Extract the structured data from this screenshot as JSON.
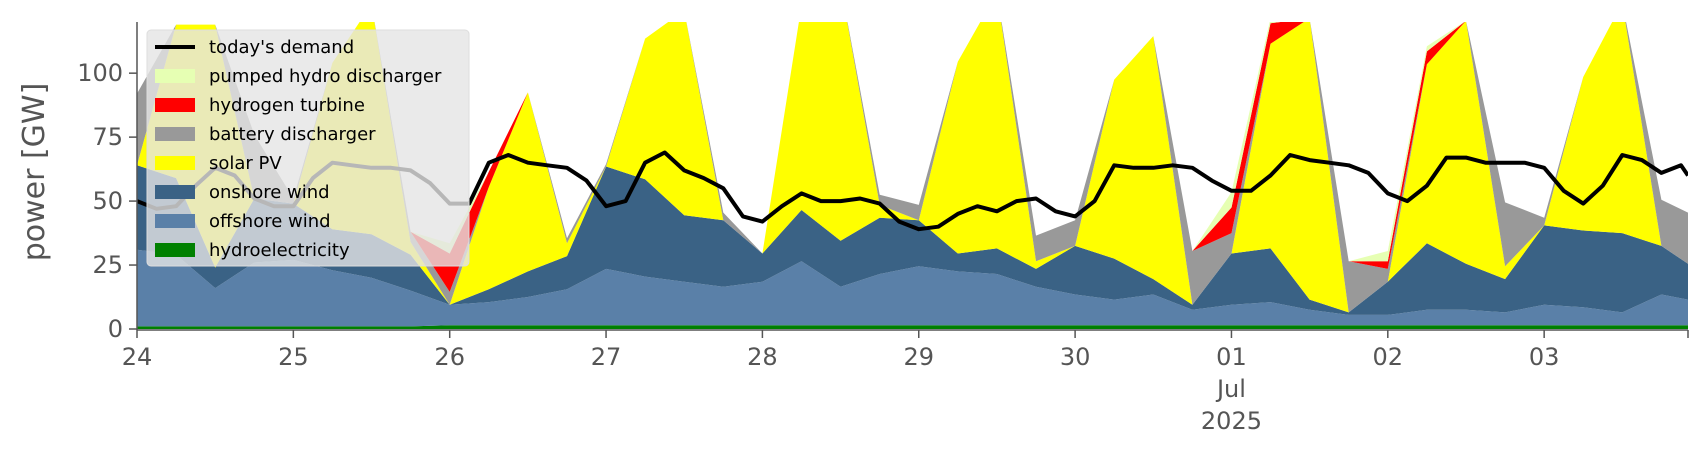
{
  "chart_data": {
    "type": "area",
    "ylabel": "power [GW]",
    "ylim": [
      0,
      120
    ],
    "xlim": [
      0,
      9.92
    ],
    "y_ticks": [
      0,
      25,
      50,
      75,
      100
    ],
    "x_ticks": [
      {
        "x": 0,
        "label": "24"
      },
      {
        "x": 1,
        "label": "25"
      },
      {
        "x": 2,
        "label": "26"
      },
      {
        "x": 3,
        "label": "27"
      },
      {
        "x": 4,
        "label": "28"
      },
      {
        "x": 5,
        "label": "29"
      },
      {
        "x": 6,
        "label": "30"
      },
      {
        "x": 7,
        "label": "01"
      },
      {
        "x": 8,
        "label": "02"
      },
      {
        "x": 9,
        "label": "03"
      }
    ],
    "x_sublabels": [
      "Jul",
      "2025"
    ],
    "x_sublabel_at": 7,
    "legend_placement": "upper-left",
    "grid": false,
    "stack_order": [
      "hydroelectricity",
      "offshore wind",
      "onshore wind",
      "solar PV",
      "battery discharger",
      "hydrogen turbine",
      "pumped hydro discharger"
    ],
    "legend_entries": [
      "today's demand",
      "pumped hydro discharger",
      "hydrogen turbine",
      "battery discharger",
      "solar PV",
      "onshore wind",
      "offshore wind",
      "hydroelectricity"
    ],
    "colors": {
      "hydroelectricity": "#008000",
      "offshore wind": "#5a80a8",
      "onshore wind": "#3a6285",
      "solar PV": "#ffff00",
      "battery discharger": "#999999",
      "hydrogen turbine": "#ff0000",
      "pumped hydro discharger": "#e6ffb3",
      "today's demand": "#000000"
    },
    "x": [
      0,
      0.25,
      0.5,
      0.75,
      1,
      1.25,
      1.5,
      1.75,
      2,
      2.25,
      2.5,
      2.75,
      3,
      3.25,
      3.5,
      3.75,
      4,
      4.25,
      4.5,
      4.75,
      5,
      5.25,
      5.5,
      5.75,
      6,
      6.25,
      6.5,
      6.75,
      7,
      7.25,
      7.5,
      7.75,
      8,
      8.25,
      8.5,
      8.75,
      9,
      9.25,
      9.5,
      9.75,
      9.92
    ],
    "series": [
      {
        "name": "hydroelectricity",
        "values": [
          1,
          1,
          1,
          1,
          1,
          1,
          1,
          1,
          1.5,
          1.5,
          1.5,
          1.5,
          1.5,
          1.5,
          1.5,
          1.5,
          1.5,
          1.5,
          1.5,
          1.5,
          1.5,
          1.5,
          1.5,
          1.5,
          1.5,
          1.5,
          1.5,
          1.5,
          1.5,
          1.5,
          1.5,
          1.5,
          1.5,
          1.5,
          1.5,
          1.5,
          1.5,
          1.5,
          1.5,
          1.5,
          1.5
        ]
      },
      {
        "name": "offshore wind",
        "values": [
          30,
          28,
          15,
          25,
          26,
          22,
          19,
          14,
          8,
          9,
          11,
          14,
          22,
          19,
          17,
          15,
          17,
          25,
          15,
          20,
          23,
          21,
          20,
          15,
          12,
          10,
          12,
          6,
          8,
          9,
          6,
          4,
          4,
          6,
          6,
          5,
          8,
          7,
          5,
          12,
          10
        ]
      },
      {
        "name": "onshore wind",
        "values": [
          33,
          30,
          8,
          25,
          22,
          16,
          17,
          14,
          0,
          5,
          10,
          13,
          40,
          38,
          26,
          26,
          11,
          20,
          18,
          22,
          18,
          7,
          10,
          7,
          19,
          16,
          6,
          2,
          20,
          21,
          4,
          1,
          13,
          26,
          18,
          13,
          31,
          30,
          31,
          19,
          14
        ]
      },
      {
        "name": "solar PV",
        "values": [
          0,
          60,
          95,
          0,
          0,
          65,
          90,
          5,
          0,
          40,
          70,
          5,
          0,
          55,
          80,
          0,
          0,
          80,
          100,
          5,
          0,
          75,
          100,
          3,
          0,
          70,
          95,
          0,
          0,
          80,
          110,
          0,
          0,
          70,
          95,
          5,
          0,
          60,
          90,
          0,
          0
        ]
      },
      {
        "name": "battery discharger",
        "values": [
          28,
          0,
          0,
          25,
          2,
          0,
          0,
          4,
          5,
          0,
          0,
          2,
          1,
          0,
          0,
          3,
          0,
          0,
          0,
          4,
          6,
          0,
          0,
          10,
          10,
          0,
          0,
          21,
          8,
          0,
          0,
          20,
          5,
          0,
          0,
          25,
          3,
          0,
          0,
          18,
          20
        ]
      },
      {
        "name": "hydrogen turbine",
        "values": [
          0,
          0,
          0,
          0,
          0,
          0,
          0,
          0,
          15,
          6,
          0,
          0,
          0,
          0,
          0,
          0,
          0,
          0,
          0,
          0,
          0,
          0,
          0,
          0,
          0,
          0,
          0,
          0,
          10,
          8,
          0,
          0,
          3,
          5,
          0,
          0,
          0,
          0,
          0,
          0,
          0
        ]
      },
      {
        "name": "pumped hydro discharger",
        "values": [
          0,
          0,
          0,
          0,
          0,
          0,
          0,
          0,
          4,
          0,
          0,
          0,
          0,
          0,
          0,
          0,
          0,
          0,
          0,
          0,
          0,
          0,
          0,
          0,
          0,
          0,
          0,
          0,
          6,
          2,
          0,
          0,
          4,
          2,
          0,
          0,
          0,
          0,
          0,
          0,
          0
        ]
      }
    ],
    "demand": {
      "name": "today's demand",
      "x": [
        0,
        0.125,
        0.25,
        0.375,
        0.5,
        0.625,
        0.75,
        0.875,
        1,
        1.125,
        1.25,
        1.375,
        1.5,
        1.625,
        1.75,
        1.875,
        2,
        2.125,
        2.25,
        2.375,
        2.5,
        2.625,
        2.75,
        2.875,
        3,
        3.125,
        3.25,
        3.375,
        3.5,
        3.625,
        3.75,
        3.875,
        4,
        4.125,
        4.25,
        4.375,
        4.5,
        4.625,
        4.75,
        4.875,
        5,
        5.125,
        5.25,
        5.375,
        5.5,
        5.625,
        5.75,
        5.875,
        6,
        6.125,
        6.25,
        6.375,
        6.5,
        6.625,
        6.75,
        6.875,
        7,
        7.125,
        7.25,
        7.375,
        7.5,
        7.625,
        7.75,
        7.875,
        8,
        8.125,
        8.25,
        8.375,
        8.5,
        8.625,
        8.75,
        8.875,
        9,
        9.125,
        9.25,
        9.375,
        9.5,
        9.625,
        9.75,
        9.875,
        9.92
      ],
      "values": [
        50,
        47,
        48,
        56,
        63,
        60,
        51,
        48,
        48,
        59,
        65,
        64,
        63,
        63,
        62,
        57,
        49,
        49,
        65,
        68,
        65,
        64,
        63,
        58,
        48,
        50,
        65,
        69,
        62,
        59,
        55,
        44,
        42,
        48,
        53,
        50,
        50,
        51,
        49,
        42,
        39,
        40,
        45,
        48,
        46,
        50,
        51,
        46,
        44,
        50,
        64,
        63,
        63,
        64,
        63,
        58,
        54,
        54,
        60,
        68,
        66,
        65,
        64,
        61,
        53,
        50,
        56,
        67,
        67,
        65,
        65,
        65,
        63,
        54,
        49,
        56,
        68,
        66,
        61,
        64,
        60
      ]
    }
  }
}
